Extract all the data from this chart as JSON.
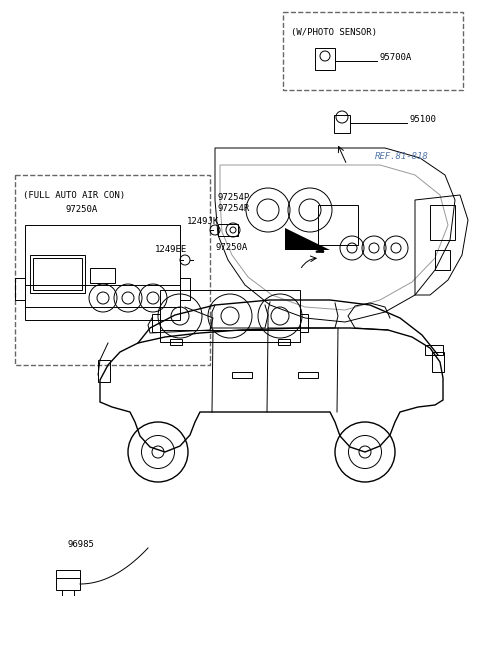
{
  "title": "",
  "background_color": "#ffffff",
  "fig_width": 4.8,
  "fig_height": 6.56,
  "dpi": 100,
  "labels": {
    "photo_sensor_box": "(W/PHOTO SENSOR)",
    "part_95700A": "95700A",
    "part_95100": "95100",
    "ref_81818": "REF.81-818",
    "full_auto_box": "(FULL AUTO AIR CON)",
    "part_97250A_left": "97250A",
    "part_97254P": "97254P",
    "part_97254R": "97254R",
    "part_1249JK": "1249JK",
    "part_1249EE": "1249EE",
    "part_97250A_right": "97250A",
    "part_96985": "96985"
  },
  "colors": {
    "black": "#000000",
    "ref_color": "#5577aa",
    "dashed_box": "#666666"
  }
}
